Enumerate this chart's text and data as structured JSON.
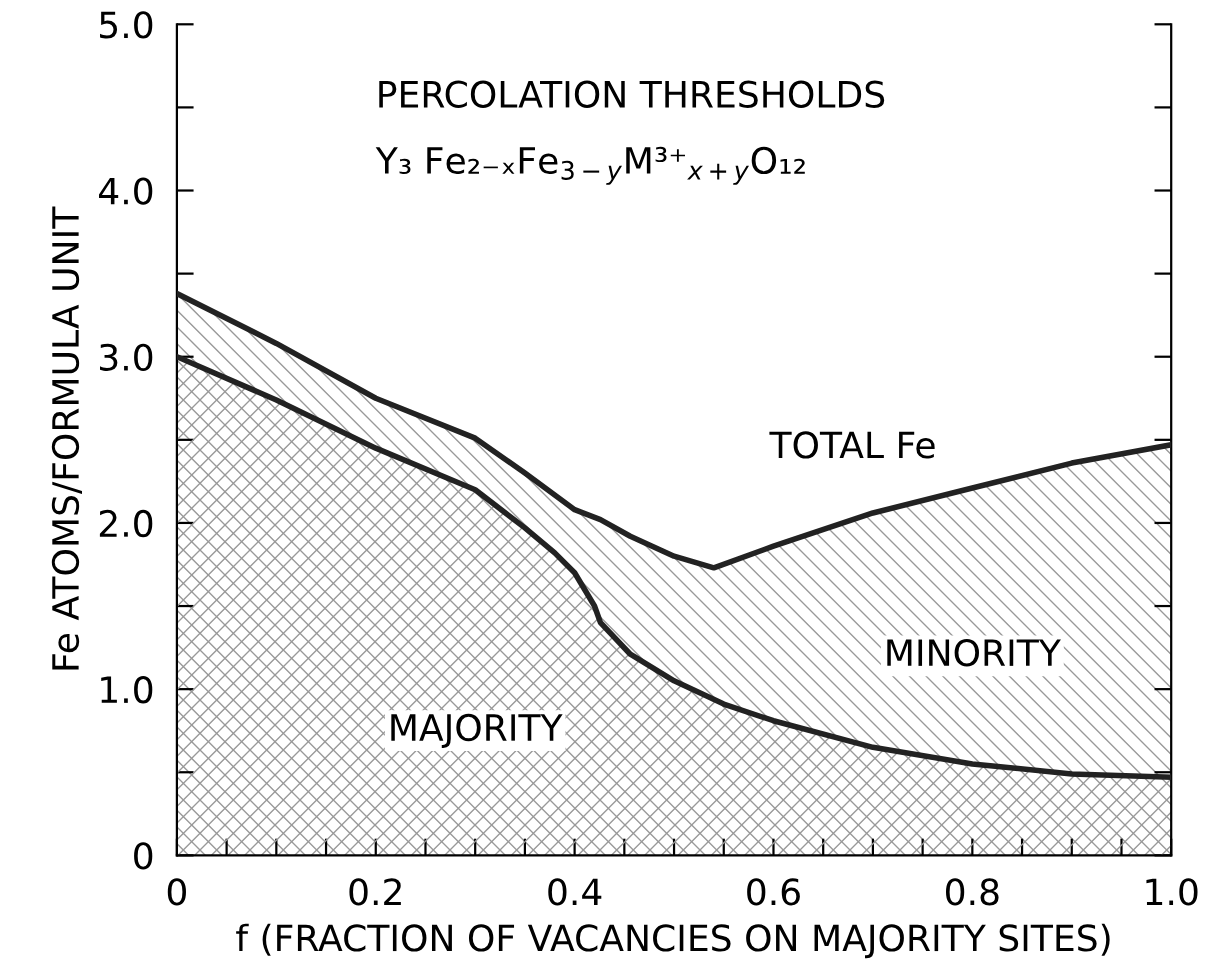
{
  "chart_data": {
    "type": "area",
    "title": "PERCOLATION THRESHOLDS",
    "subtitle": "Y₃ Fe₂₋ₓFe$_{3−y}$M³⁺$_{x+y}$O₁₂",
    "xlabel": "f (FRACTION OF VACANCIES ON MAJORITY SITES)",
    "ylabel": "Fe ATOMS/FORMULA UNIT",
    "annotations": [
      "TOTAL Fe",
      "MINORITY",
      "MAJORITY"
    ],
    "series": [
      {
        "color": "#222222",
        "x": [
          0,
          0.1,
          0.2,
          0.3,
          0.35,
          0.4,
          0.426,
          0.456,
          0.5,
          0.54,
          0.6,
          0.7,
          0.8,
          0.9,
          1.0
        ],
        "values": [
          3.38,
          3.08,
          2.75,
          2.51,
          2.3,
          2.08,
          2.02,
          1.92,
          1.8,
          1.73,
          1.86,
          2.06,
          2.21,
          2.36,
          2.47
        ]
      },
      {
        "color": "#222222",
        "x": [
          0,
          0.1,
          0.2,
          0.3,
          0.35,
          0.38,
          0.4,
          0.42,
          0.426,
          0.456,
          0.5,
          0.55,
          0.6,
          0.7,
          0.8,
          0.9,
          1.0
        ],
        "values": [
          3.0,
          2.74,
          2.45,
          2.2,
          1.97,
          1.82,
          1.7,
          1.5,
          1.4,
          1.21,
          1.05,
          0.91,
          0.81,
          0.65,
          0.55,
          0.49,
          0.47
        ]
      }
    ],
    "xlim": [
      0,
      1.0
    ],
    "ylim": [
      0,
      5.0
    ],
    "xticks": [
      {
        "value": 0,
        "label": "0"
      },
      {
        "value": 0.05,
        "label": null
      },
      {
        "value": 0.1,
        "label": null
      },
      {
        "value": 0.15,
        "label": null
      },
      {
        "value": 0.2,
        "label": "0.2"
      },
      {
        "value": 0.25,
        "label": null
      },
      {
        "value": 0.3,
        "label": null
      },
      {
        "value": 0.35,
        "label": null
      },
      {
        "value": 0.4,
        "label": "0.4"
      },
      {
        "value": 0.45,
        "label": null
      },
      {
        "value": 0.5,
        "label": null
      },
      {
        "value": 0.55,
        "label": null
      },
      {
        "value": 0.6,
        "label": "0.6"
      },
      {
        "value": 0.65,
        "label": null
      },
      {
        "value": 0.7,
        "label": null
      },
      {
        "value": 0.75,
        "label": null
      },
      {
        "value": 0.8,
        "label": "0.8"
      },
      {
        "value": 0.85,
        "label": null
      },
      {
        "value": 0.9,
        "label": null
      },
      {
        "value": 0.95,
        "label": null
      },
      {
        "value": 1.0,
        "label": "1.0"
      }
    ],
    "yticks": [
      {
        "value": 0,
        "label": "0"
      },
      {
        "value": 0.5,
        "label": null
      },
      {
        "value": 1.0,
        "label": "1.0"
      },
      {
        "value": 1.5,
        "label": null
      },
      {
        "value": 2.0,
        "label": "2.0"
      },
      {
        "value": 2.5,
        "label": null
      },
      {
        "value": 3.0,
        "label": "3.0"
      },
      {
        "value": 3.5,
        "label": null
      },
      {
        "value": 4.0,
        "label": "4.0"
      },
      {
        "value": 4.5,
        "label": null
      },
      {
        "value": 5.0,
        "label": "5.0"
      }
    ],
    "grid": false,
    "legend": false
  }
}
